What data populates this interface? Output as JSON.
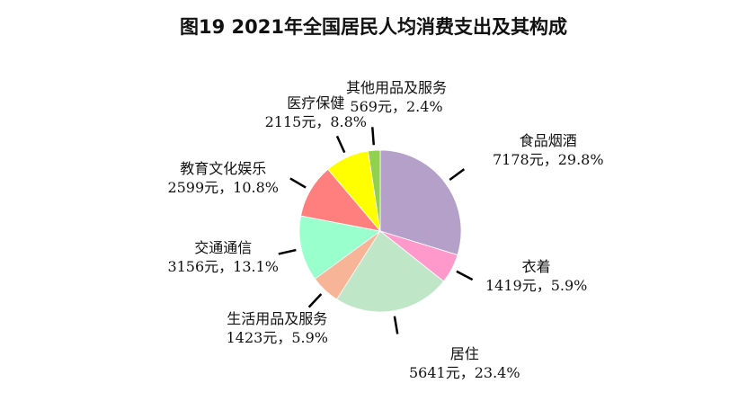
{
  "chart_data": {
    "type": "pie",
    "title": "图19    2021年全国居民人均消费支出及其构成",
    "start": "top",
    "direction": "clockwise",
    "slices": [
      {
        "name": "食品烟酒",
        "value": 7178,
        "percent": 29.8,
        "value_label": "7178元，29.8%",
        "color": "#b4a0c8"
      },
      {
        "name": "衣着",
        "value": 1419,
        "percent": 5.9,
        "value_label": "1419元，5.9%",
        "color": "#ff99cc"
      },
      {
        "name": "居住",
        "value": 5641,
        "percent": 23.4,
        "value_label": "5641元，23.4%",
        "color": "#c0e6c8"
      },
      {
        "name": "生活用品及服务",
        "value": 1423,
        "percent": 5.9,
        "value_label": "1423元，5.9%",
        "color": "#f8b496"
      },
      {
        "name": "交通通信",
        "value": 3156,
        "percent": 13.1,
        "value_label": "3156元，13.1%",
        "color": "#99ffcc"
      },
      {
        "name": "教育文化娱乐",
        "value": 2599,
        "percent": 10.8,
        "value_label": "2599元，10.8%",
        "color": "#ff7f7f"
      },
      {
        "name": "医疗保健",
        "value": 2115,
        "percent": 8.8,
        "value_label": "2115元，8.8%",
        "color": "#ffff00"
      },
      {
        "name": "其他用品及服务",
        "value": 569,
        "percent": 2.4,
        "value_label": "569元，2.4%",
        "color": "#92d050"
      }
    ]
  }
}
